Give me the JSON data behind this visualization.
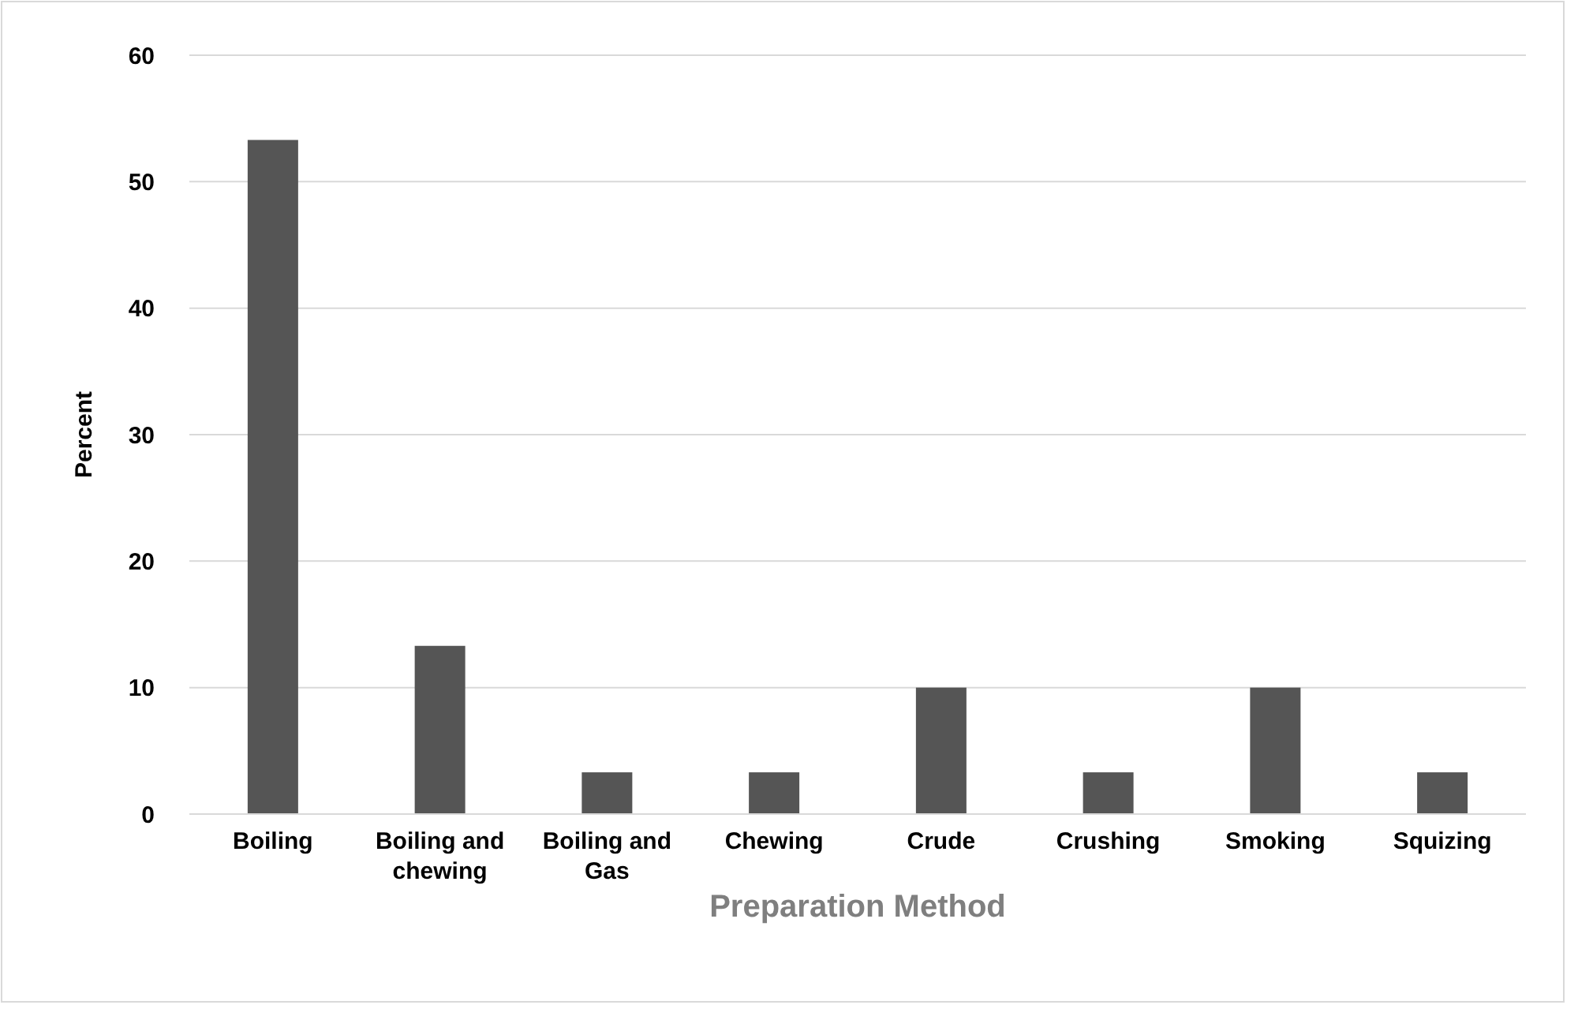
{
  "chart_data": {
    "type": "bar",
    "xlabel": "Preparation Method",
    "ylabel": "Percent",
    "categories": [
      "Boiling",
      "Boiling and chewing",
      "Boiling and Gas",
      "Chewing",
      "Crude",
      "Crushing",
      "Smoking",
      "Squizing"
    ],
    "values": [
      53.3,
      13.3,
      3.3,
      3.3,
      10,
      3.3,
      10,
      3.3
    ],
    "color": "#555555",
    "ylim": [
      0,
      60
    ],
    "yticks": [
      0,
      10,
      20,
      30,
      40,
      50,
      60
    ],
    "grid": "y"
  }
}
